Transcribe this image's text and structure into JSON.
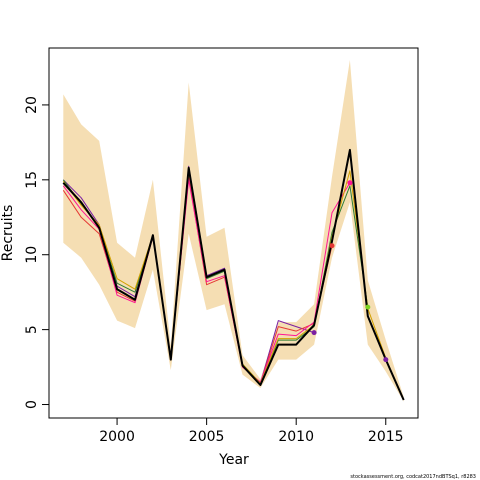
{
  "chart_data": {
    "type": "line",
    "xlabel": "Year",
    "ylabel": "Recruits",
    "xlim": [
      1996.2,
      2016.8
    ],
    "ylim": [
      -0.9,
      23.8
    ],
    "xticks": [
      2000,
      2005,
      2010,
      2015
    ],
    "yticks": [
      0,
      5,
      10,
      15,
      20
    ],
    "grid": false,
    "legend": "none",
    "band": {
      "color": "#f5deb3",
      "x": [
        1997,
        1998,
        1999,
        2000,
        2001,
        2002,
        2003,
        2004,
        2005,
        2006,
        2007,
        2008,
        2009,
        2010,
        2011,
        2012,
        2013,
        2014,
        2015,
        2016
      ],
      "upper": [
        20.7,
        18.7,
        17.6,
        10.8,
        9.8,
        15.0,
        3.9,
        21.5,
        11.2,
        11.8,
        3.3,
        1.7,
        5.5,
        5.5,
        6.7,
        15.2,
        23.0,
        8.3,
        4.3,
        0.5
      ],
      "lower": [
        10.8,
        9.8,
        8.0,
        5.6,
        5.1,
        9.0,
        2.3,
        11.4,
        6.3,
        6.7,
        2.0,
        1.1,
        3.0,
        3.0,
        4.0,
        9.8,
        13.5,
        4.0,
        2.2,
        0.2
      ]
    },
    "series": [
      {
        "color": "#000000",
        "width": 2.0,
        "x": [
          1997,
          1998,
          1999,
          2000,
          2001,
          2002,
          2003,
          2004,
          2005,
          2006,
          2007,
          2008,
          2009,
          2010,
          2011,
          2012,
          2013,
          2014,
          2015,
          2016
        ],
        "values": [
          14.8,
          13.5,
          11.8,
          7.7,
          7.0,
          11.3,
          3.0,
          15.8,
          8.5,
          9.0,
          2.6,
          1.3,
          4.0,
          4.0,
          5.3,
          10.9,
          17.0,
          5.9,
          3.0,
          0.3
        ]
      },
      {
        "color": "#7b1fa2",
        "width": 1.0,
        "x": [
          1997,
          1998,
          1999,
          2000,
          2001,
          2002,
          2003,
          2004,
          2005,
          2006,
          2007,
          2008,
          2009,
          2010,
          2011
        ],
        "values": [
          15.0,
          13.8,
          12.0,
          7.9,
          7.2,
          11.3,
          3.1,
          15.9,
          8.6,
          9.1,
          2.6,
          1.4,
          5.6,
          5.2,
          4.8
        ]
      },
      {
        "color": "#e53935",
        "width": 1.0,
        "x": [
          1997,
          1998,
          1999,
          2000,
          2001,
          2002,
          2003,
          2004,
          2005,
          2006,
          2007,
          2008,
          2009,
          2010,
          2011,
          2012
        ],
        "values": [
          14.3,
          12.5,
          11.4,
          7.5,
          6.9,
          11.2,
          3.0,
          15.2,
          8.0,
          8.5,
          2.6,
          1.4,
          5.2,
          4.9,
          5.4,
          10.6
        ]
      },
      {
        "color": "#ff1493",
        "width": 1.0,
        "x": [
          1997,
          1998,
          1999,
          2000,
          2001,
          2002,
          2003,
          2004,
          2005,
          2006,
          2007,
          2008,
          2009,
          2010,
          2011,
          2012,
          2013
        ],
        "values": [
          14.6,
          13.0,
          11.7,
          7.3,
          6.8,
          11.2,
          3.1,
          15.0,
          8.2,
          8.6,
          2.5,
          1.5,
          4.7,
          4.6,
          5.5,
          12.8,
          14.8
        ]
      },
      {
        "color": "#2e7d32",
        "width": 1.0,
        "x": [
          1997,
          1998,
          1999,
          2000,
          2001,
          2002,
          2003,
          2004,
          2005,
          2006,
          2007,
          2008,
          2009,
          2010,
          2011,
          2012,
          2013,
          2014
        ],
        "values": [
          15.0,
          13.4,
          11.9,
          8.1,
          7.5,
          11.3,
          3.0,
          15.6,
          8.4,
          8.9,
          2.7,
          1.4,
          4.3,
          4.3,
          5.2,
          11.5,
          14.6,
          6.5
        ]
      },
      {
        "color": "#d2a000",
        "width": 1.0,
        "x": [
          1997,
          1998,
          1999,
          2000,
          2001,
          2002,
          2003,
          2004,
          2005,
          2006,
          2007,
          2008,
          2009,
          2010,
          2011,
          2012,
          2013,
          2014,
          2015
        ],
        "values": [
          14.9,
          13.3,
          12.0,
          8.4,
          7.7,
          11.3,
          3.0,
          15.7,
          8.5,
          9.0,
          2.7,
          1.4,
          4.4,
          4.4,
          5.3,
          11.2,
          15.6,
          6.4,
          3.1
        ]
      }
    ],
    "points": [
      {
        "x": 2011,
        "y": 4.8,
        "color": "#7b1fa2"
      },
      {
        "x": 2012,
        "y": 10.6,
        "color": "#e53935"
      },
      {
        "x": 2013,
        "y": 14.8,
        "color": "#ff1493"
      },
      {
        "x": 2014,
        "y": 6.5,
        "color": "#7cd320"
      },
      {
        "x": 2015,
        "y": 3.0,
        "color": "#7b1fa2"
      }
    ]
  },
  "footer": "stockassessment.org, codcat2017ndBTSq1, r8283"
}
